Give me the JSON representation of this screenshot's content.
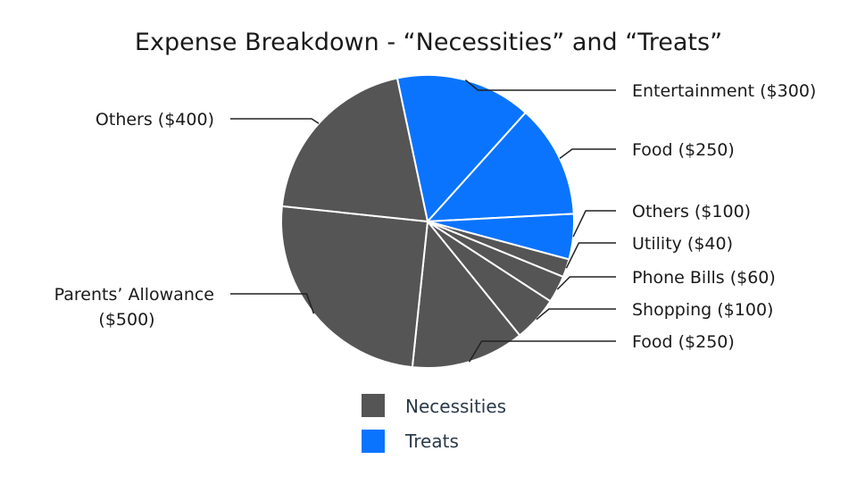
{
  "chart_data": {
    "type": "pie",
    "title": "Expense Breakdown - “Necessities” and “Treats”",
    "slices": [
      {
        "label": "Entertainment ($300)",
        "value": 300,
        "group": "Treats"
      },
      {
        "label": "Food ($250)",
        "value": 250,
        "group": "Treats"
      },
      {
        "label": "Others ($100)",
        "value": 100,
        "group": "Treats"
      },
      {
        "label": "Utility ($40)",
        "value": 40,
        "group": "Necessities"
      },
      {
        "label": "Phone Bills ($60)",
        "value": 60,
        "group": "Necessities"
      },
      {
        "label": "Shopping ($100)",
        "value": 100,
        "group": "Necessities"
      },
      {
        "label": "Food ($250)",
        "value": 250,
        "group": "Necessities"
      },
      {
        "label": "Parents’ Allowance ($500)",
        "label_lines": [
          "Parents’ Allowance",
          "($500)"
        ],
        "value": 500,
        "group": "Necessities"
      },
      {
        "label": "Others ($400)",
        "value": 400,
        "group": "Necessities"
      }
    ],
    "legend": [
      {
        "name": "Necessities",
        "color": "#555555"
      },
      {
        "name": "Treats",
        "color": "#0a74ff"
      }
    ],
    "legend_position": "bottom-center"
  }
}
